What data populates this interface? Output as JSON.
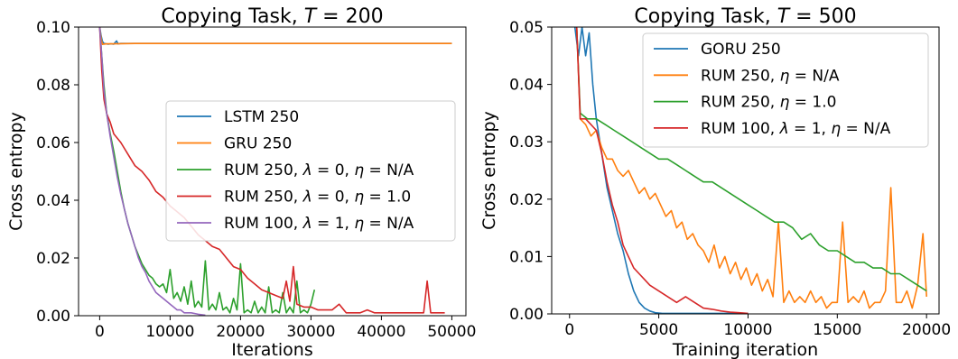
{
  "chart_data": [
    {
      "type": "line",
      "title": "Copying Task, T = 200",
      "title_parts": {
        "prefix": "Copying Task, ",
        "var": "T",
        "eq": " = 200"
      },
      "xlabel": "Iterations",
      "ylabel": "Cross entropy",
      "xlim": [
        -3000,
        52000
      ],
      "ylim": [
        0,
        0.1
      ],
      "xticks": [
        0,
        10000,
        20000,
        30000,
        40000,
        50000
      ],
      "xtick_labels": [
        "0",
        "10000",
        "20000",
        "30000",
        "40000",
        "50000"
      ],
      "yticks": [
        0,
        0.02,
        0.04,
        0.06,
        0.08,
        0.1
      ],
      "ytick_labels": [
        "0.00",
        "0.02",
        "0.04",
        "0.06",
        "0.08",
        "0.10"
      ],
      "grid": false,
      "legend_position": "center-right",
      "series": [
        {
          "name": "LSTM 250",
          "color": "#1f77b4",
          "x": [
            0,
            200,
            400,
            600,
            900,
            1200,
            1600,
            2000,
            2400,
            2600,
            3000,
            5000,
            10000,
            20000,
            30000,
            40000,
            50000
          ],
          "y": [
            0.1,
            0.097,
            0.095,
            0.0943,
            0.0942,
            0.0941,
            0.0942,
            0.0941,
            0.0952,
            0.0942,
            0.0943,
            0.0943,
            0.0943,
            0.0943,
            0.0943,
            0.0943,
            0.0943
          ]
        },
        {
          "name": "GRU 250",
          "color": "#ff7f0e",
          "x": [
            0,
            200,
            400,
            600,
            1000,
            2000,
            5000,
            10000,
            20000,
            30000,
            40000,
            50000
          ],
          "y": [
            0.1,
            0.096,
            0.094,
            0.0941,
            0.0942,
            0.0942,
            0.0943,
            0.0943,
            0.0943,
            0.0943,
            0.0943,
            0.0943
          ]
        },
        {
          "name": "RUM 250, λ = 0, η = N/A",
          "label_parts": {
            "prefix": "RUM 250, ",
            "v1": "λ",
            "e1": " = 0, ",
            "v2": "η",
            "e2": " = N/A"
          },
          "color": "#2ca02c",
          "x": [
            0,
            300,
            600,
            1000,
            1500,
            2000,
            2500,
            3000,
            3500,
            4000,
            4500,
            5000,
            5500,
            6000,
            6500,
            7000,
            7500,
            8000,
            8500,
            9000,
            9500,
            10000,
            10500,
            11000,
            11500,
            12000,
            12500,
            13000,
            13500,
            14000,
            14500,
            15000,
            15500,
            16000,
            16500,
            17000,
            17500,
            18000,
            18500,
            19000,
            19500,
            20000,
            20500,
            21000,
            21500,
            22000,
            22500,
            23000,
            23500,
            24000,
            24500,
            25000,
            25500,
            26000,
            26500,
            27000,
            27500,
            28000,
            28500,
            29000,
            29500,
            30000,
            30500
          ],
          "y": [
            0.1,
            0.09,
            0.08,
            0.07,
            0.063,
            0.057,
            0.05,
            0.043,
            0.037,
            0.032,
            0.028,
            0.024,
            0.021,
            0.018,
            0.016,
            0.014,
            0.013,
            0.011,
            0.01,
            0.011,
            0.008,
            0.016,
            0.006,
            0.008,
            0.005,
            0.01,
            0.004,
            0.012,
            0.003,
            0.005,
            0.003,
            0.019,
            0.002,
            0.004,
            0.002,
            0.008,
            0.002,
            0.003,
            0.001,
            0.006,
            0.002,
            0.018,
            0.001,
            0.002,
            0.001,
            0.005,
            0.001,
            0.003,
            0.001,
            0.01,
            0.001,
            0.002,
            0.001,
            0.008,
            0.001,
            0.003,
            0.001,
            0.012,
            0.001,
            0.002,
            0.001,
            0.004,
            0.009
          ]
        },
        {
          "name": "RUM 250, λ = 0, η = 1.0",
          "label_parts": {
            "prefix": "RUM 250, ",
            "v1": "λ",
            "e1": " = 0, ",
            "v2": "η",
            "e2": " = 1.0"
          },
          "color": "#d62728",
          "x": [
            0,
            300,
            600,
            1000,
            1500,
            2000,
            3000,
            4000,
            5000,
            6000,
            7000,
            8000,
            9000,
            10000,
            11000,
            12000,
            13000,
            14000,
            15000,
            16000,
            17000,
            18000,
            19000,
            20000,
            21000,
            22000,
            23000,
            24000,
            25000,
            26000,
            26500,
            27000,
            27500,
            28000,
            29000,
            30000,
            31000,
            32000,
            33000,
            34000,
            35000,
            36000,
            37000,
            38000,
            39000,
            40000,
            41000,
            42000,
            43000,
            44000,
            45000,
            46000,
            46500,
            47000,
            48000,
            49000
          ],
          "y": [
            0.1,
            0.085,
            0.075,
            0.07,
            0.067,
            0.063,
            0.06,
            0.056,
            0.052,
            0.05,
            0.047,
            0.043,
            0.041,
            0.038,
            0.036,
            0.034,
            0.031,
            0.028,
            0.026,
            0.024,
            0.023,
            0.02,
            0.017,
            0.016,
            0.013,
            0.011,
            0.009,
            0.008,
            0.007,
            0.006,
            0.012,
            0.005,
            0.017,
            0.004,
            0.003,
            0.003,
            0.002,
            0.002,
            0.002,
            0.004,
            0.001,
            0.001,
            0.001,
            0.002,
            0.001,
            0.001,
            0.001,
            0.001,
            0.001,
            0.001,
            0.001,
            0.001,
            0.012,
            0.001,
            0.001,
            0.001
          ]
        },
        {
          "name": "RUM 100, λ = 1, η = N/A",
          "label_parts": {
            "prefix": "RUM 100, ",
            "v1": "λ",
            "e1": " = 1, ",
            "v2": "η",
            "e2": " = N/A"
          },
          "color": "#9467bd",
          "x": [
            0,
            300,
            600,
            1000,
            1500,
            2000,
            2500,
            3000,
            3500,
            4000,
            4500,
            5000,
            5500,
            6000,
            6500,
            7000,
            7500,
            8000,
            8500,
            9000,
            9500,
            10000,
            10500,
            11000,
            11500,
            12000,
            13000,
            14000,
            15000
          ],
          "y": [
            0.1,
            0.09,
            0.078,
            0.07,
            0.062,
            0.055,
            0.048,
            0.042,
            0.037,
            0.032,
            0.028,
            0.024,
            0.02,
            0.017,
            0.015,
            0.012,
            0.01,
            0.008,
            0.007,
            0.006,
            0.005,
            0.004,
            0.003,
            0.002,
            0.002,
            0.001,
            0.001,
            0.0005,
            0.0002
          ]
        }
      ]
    },
    {
      "type": "line",
      "title": "Copying Task, T = 500",
      "title_parts": {
        "prefix": "Copying Task, ",
        "var": "T",
        "eq": " = 500"
      },
      "xlabel": "Training iteration",
      "ylabel": "Cross entropy",
      "xlim": [
        -1000,
        20700
      ],
      "ylim": [
        0,
        0.05
      ],
      "xticks": [
        0,
        5000,
        10000,
        15000,
        20000
      ],
      "xtick_labels": [
        "0",
        "5000",
        "10000",
        "15000",
        "20000"
      ],
      "yticks": [
        0,
        0.01,
        0.02,
        0.03,
        0.04,
        0.05
      ],
      "ytick_labels": [
        "0.00",
        "0.01",
        "0.02",
        "0.03",
        "0.04",
        "0.05"
      ],
      "grid": false,
      "legend_position": "upper-right",
      "series": [
        {
          "name": "GORU 250",
          "color": "#1f77b4",
          "x": [
            300,
            500,
            700,
            900,
            1100,
            1300,
            1500,
            1800,
            2100,
            2400,
            2700,
            3000,
            3300,
            3600,
            3900,
            4200,
            4500,
            4800,
            5200,
            6000,
            8000,
            10000
          ],
          "y": [
            0.05,
            0.045,
            0.05,
            0.045,
            0.049,
            0.04,
            0.034,
            0.028,
            0.022,
            0.018,
            0.014,
            0.011,
            0.007,
            0.004,
            0.002,
            0.001,
            0.0005,
            0.0002,
            0.0001,
            0.0001,
            0.0001,
            0.0001
          ]
        },
        {
          "name": "RUM 250, η = N/A",
          "label_parts": {
            "prefix": "RUM 250, ",
            "v1": "η",
            "e1": " = N/A"
          },
          "color": "#ff7f0e",
          "x": [
            400,
            600,
            900,
            1200,
            1500,
            1800,
            2100,
            2400,
            2700,
            3000,
            3300,
            3600,
            3900,
            4200,
            4500,
            4800,
            5100,
            5400,
            5700,
            6000,
            6300,
            6600,
            6900,
            7200,
            7500,
            7800,
            8100,
            8400,
            8700,
            9000,
            9300,
            9600,
            9900,
            10200,
            10500,
            10800,
            11100,
            11400,
            11700,
            12000,
            12300,
            12600,
            12900,
            13200,
            13500,
            13800,
            14100,
            14400,
            14700,
            15000,
            15300,
            15600,
            15900,
            16200,
            16500,
            16800,
            17100,
            17400,
            17700,
            18000,
            18300,
            18600,
            18900,
            19200,
            19500,
            19800,
            20000
          ],
          "y": [
            0.05,
            0.034,
            0.033,
            0.031,
            0.032,
            0.029,
            0.027,
            0.027,
            0.025,
            0.024,
            0.025,
            0.023,
            0.021,
            0.022,
            0.02,
            0.021,
            0.019,
            0.017,
            0.018,
            0.015,
            0.016,
            0.013,
            0.014,
            0.012,
            0.011,
            0.009,
            0.012,
            0.008,
            0.01,
            0.007,
            0.009,
            0.006,
            0.008,
            0.005,
            0.007,
            0.004,
            0.006,
            0.003,
            0.016,
            0.002,
            0.004,
            0.002,
            0.003,
            0.002,
            0.004,
            0.002,
            0.003,
            0.001,
            0.002,
            0.002,
            0.016,
            0.002,
            0.003,
            0.002,
            0.004,
            0.001,
            0.002,
            0.002,
            0.004,
            0.022,
            0.002,
            0.002,
            0.004,
            0.001,
            0.005,
            0.014,
            0.003
          ]
        },
        {
          "name": "RUM 250, η = 1.0",
          "label_parts": {
            "prefix": "RUM 250, ",
            "v1": "η",
            "e1": " = 1.0"
          },
          "color": "#2ca02c",
          "x": [
            400,
            600,
            1000,
            1500,
            2000,
            2500,
            3000,
            3500,
            4000,
            4500,
            5000,
            5500,
            6000,
            6500,
            7000,
            7500,
            8000,
            8500,
            9000,
            9500,
            10000,
            10500,
            11000,
            11500,
            12000,
            12500,
            13000,
            13500,
            14000,
            14500,
            15000,
            15500,
            16000,
            16500,
            17000,
            17500,
            18000,
            18500,
            19000,
            19500,
            20000
          ],
          "y": [
            0.05,
            0.035,
            0.034,
            0.034,
            0.033,
            0.032,
            0.031,
            0.03,
            0.029,
            0.028,
            0.027,
            0.027,
            0.026,
            0.025,
            0.024,
            0.023,
            0.023,
            0.022,
            0.021,
            0.02,
            0.019,
            0.018,
            0.017,
            0.016,
            0.016,
            0.015,
            0.013,
            0.014,
            0.012,
            0.011,
            0.011,
            0.01,
            0.009,
            0.009,
            0.008,
            0.008,
            0.007,
            0.007,
            0.006,
            0.005,
            0.004
          ]
        },
        {
          "name": "RUM 100, λ = 1, η = N/A",
          "label_parts": {
            "prefix": "RUM 100, ",
            "v1": "λ",
            "e1": " = 1, ",
            "v2": "η",
            "e2": " = N/A"
          },
          "color": "#d62728",
          "x": [
            400,
            600,
            900,
            1200,
            1500,
            1800,
            2100,
            2400,
            2700,
            3000,
            3300,
            3600,
            3900,
            4200,
            4500,
            5000,
            5500,
            6000,
            6500,
            7000,
            7500,
            8000,
            8500,
            9000,
            9500,
            10000
          ],
          "y": [
            0.05,
            0.034,
            0.034,
            0.033,
            0.032,
            0.028,
            0.023,
            0.019,
            0.016,
            0.012,
            0.01,
            0.008,
            0.007,
            0.006,
            0.005,
            0.004,
            0.003,
            0.002,
            0.003,
            0.002,
            0.001,
            0.0008,
            0.0005,
            0.0003,
            0.0002,
            0.0001
          ]
        }
      ]
    }
  ]
}
